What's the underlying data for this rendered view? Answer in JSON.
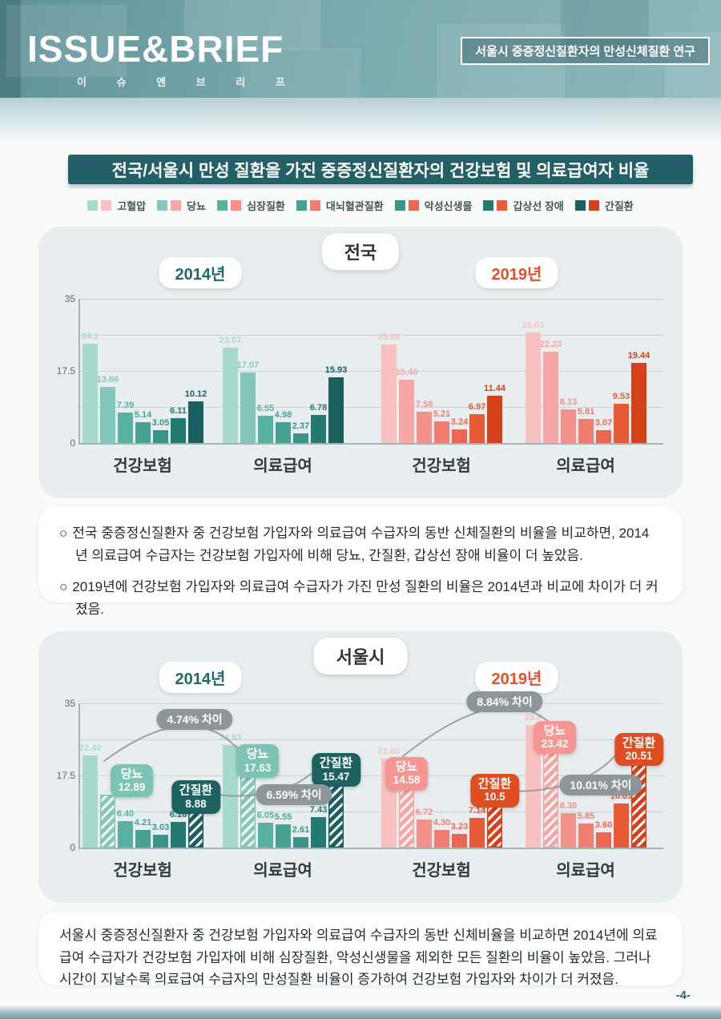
{
  "header": {
    "logo_title": "ISSUE&BRIEF",
    "logo_subtitle": "이 슈 앤 브 리 프",
    "badge": "서울시 중증정신질환자의 만성신체질환 연구"
  },
  "section_title": "전국/서울시 만성 질환을 가진 중증정신질환자의 건강보험 및 의료급여자 비율",
  "colors": {
    "teal_palette": [
      "#a8d9cd",
      "#83c7b8",
      "#58b1a1",
      "#47a294",
      "#3a9488",
      "#237a70",
      "#1a605f"
    ],
    "red_palette": [
      "#f8c1c1",
      "#f6a7a5",
      "#f3908a",
      "#f07d70",
      "#ec6752",
      "#e75b36",
      "#d5411a"
    ],
    "title_bar": "#235f66",
    "year_2014_text": "#1f6b64",
    "year_2019_text": "#e0522a",
    "diff_badge_bg": "#8f9699"
  },
  "legend": {
    "items": [
      {
        "label": "고혈압"
      },
      {
        "label": "당뇨"
      },
      {
        "label": "심장질환"
      },
      {
        "label": "대뇌혈관질환"
      },
      {
        "label": "악성신생물"
      },
      {
        "label": "갑상선 장애"
      },
      {
        "label": "간질환"
      }
    ]
  },
  "chart_data": [
    {
      "type": "bar",
      "title": "전국",
      "ylim": [
        0,
        35
      ],
      "grid_step": 8.75,
      "yticks": [
        {
          "label": "35",
          "value": 35
        },
        {
          "label": "17.5",
          "value": 17.5
        },
        {
          "label": "0",
          "value": 0
        }
      ],
      "series_labels": [
        "고혈압",
        "당뇨",
        "심장질환",
        "대뇌혈관질환",
        "악성신생물",
        "갑상선 장애",
        "간질환"
      ],
      "hatched_bar_indices": [],
      "year_sections": [
        {
          "label": "2014년",
          "palette": "teal_palette",
          "groups": [
            {
              "category": "건강보험",
              "values": [
                24.1,
                13.66,
                7.39,
                5.14,
                3.05,
                6.11,
                10.12
              ],
              "labels": [
                "24.1",
                "13.66",
                "7.39",
                "5.14",
                "3.05",
                "6.11",
                "10.12"
              ]
            },
            {
              "category": "의료급여",
              "values": [
                23.07,
                17.07,
                6.55,
                4.98,
                2.37,
                6.78,
                15.93
              ],
              "labels": [
                "23.07",
                "17.07",
                "6.55",
                "4.98",
                "2.37",
                "6.78",
                "15.93"
              ]
            }
          ]
        },
        {
          "label": "2019년",
          "palette": "red_palette",
          "groups": [
            {
              "category": "건강보험",
              "values": [
                23.88,
                15.4,
                7.58,
                5.21,
                3.24,
                6.97,
                11.44
              ],
              "labels": [
                "23.88",
                "15.40",
                "7.58",
                "5.21",
                "3.24",
                "6.97",
                "11.44"
              ]
            },
            {
              "category": "의료급여",
              "values": [
                26.83,
                22.23,
                8.13,
                5.81,
                3.07,
                9.53,
                19.44
              ],
              "labels": [
                "26.83",
                "22.23",
                "8.13",
                "5.81",
                "3.07",
                "9.53",
                "19.44"
              ]
            }
          ]
        }
      ],
      "callouts": [],
      "diff_annotations": []
    },
    {
      "type": "bar",
      "title": "서울시",
      "ylim": [
        0,
        35
      ],
      "grid_step": 8.75,
      "yticks": [
        {
          "label": "35",
          "value": 35
        },
        {
          "label": "17.5",
          "value": 17.5
        },
        {
          "label": "0",
          "value": 0
        }
      ],
      "series_labels": [
        "고혈압",
        "당뇨",
        "심장질환",
        "대뇌혈관질환",
        "악성신생물",
        "갑상선 장애",
        "간질환"
      ],
      "hatched_bar_indices": [
        1,
        6
      ],
      "year_sections": [
        {
          "label": "2014년",
          "palette": "teal_palette",
          "groups": [
            {
              "category": "건강보험",
              "values": [
                22.4,
                12.89,
                6.4,
                4.21,
                3.03,
                6.16,
                8.88
              ],
              "labels": [
                "22.40",
                "12.89",
                "6.40",
                "4.21",
                "3.03",
                "6.16",
                "8.88"
              ]
            },
            {
              "category": "의료급여",
              "values": [
                24.83,
                17.63,
                6.05,
                5.55,
                2.61,
                7.43,
                15.47
              ],
              "labels": [
                "24.83",
                "17.63",
                "6.05",
                "5.55",
                "2.61",
                "7.43",
                "15.47"
              ]
            }
          ]
        },
        {
          "label": "2019년",
          "palette": "red_palette",
          "groups": [
            {
              "category": "건강보험",
              "values": [
                21.65,
                14.58,
                6.72,
                4.3,
                3.23,
                7.14,
                10.5
              ],
              "labels": [
                "21.65",
                "14.58",
                "6.72",
                "4.30",
                "3.23",
                "7.14",
                "10.5"
              ]
            },
            {
              "category": "의료급여",
              "values": [
                29.8,
                23.42,
                8.3,
                5.85,
                3.6,
                10.61,
                20.51
              ],
              "labels": [
                "29.8",
                "23.42",
                "8.30",
                "5.85",
                "3.60",
                "10.61",
                "20.51"
              ]
            }
          ]
        }
      ],
      "callouts": [
        {
          "group": 0,
          "bar": 1,
          "title": "당뇨",
          "value": "12.89",
          "color": "#7cc3b3"
        },
        {
          "group": 0,
          "bar": 6,
          "title": "간질환",
          "value": "8.88",
          "color": "#1d6160"
        },
        {
          "group": 1,
          "bar": 1,
          "title": "당뇨",
          "value": "17.63",
          "color": "#7cc3b3"
        },
        {
          "group": 1,
          "bar": 6,
          "title": "간질환",
          "value": "15.47",
          "color": "#1d6160"
        },
        {
          "group": 2,
          "bar": 1,
          "title": "당뇨",
          "value": "14.58",
          "color": "#f59692"
        },
        {
          "group": 2,
          "bar": 6,
          "title": "간질환",
          "value": "10.5",
          "color": "#e04d20"
        },
        {
          "group": 3,
          "bar": 1,
          "title": "당뇨",
          "value": "23.42",
          "color": "#f59692"
        },
        {
          "group": 3,
          "bar": 6,
          "title": "간질환",
          "value": "20.51",
          "color": "#e04d20"
        }
      ],
      "diff_annotations": [
        {
          "text": "4.74% 차이"
        },
        {
          "text": "6.59% 차이"
        },
        {
          "text": "8.84% 차이"
        },
        {
          "text": "10.01% 차이"
        }
      ]
    }
  ],
  "summary1": {
    "marker": "○",
    "bullets": [
      "전국 중증정신질환자 중 건강보험 가입자와 의료급여 수급자의 동반 신체질환의 비율을 비교하면, 2014년 의료급여 수급자는 건강보험 가입자에 비해 당뇨, 간질환, 갑상선 장애 비율이 더 높았음.",
      "2019년에 건강보험 가입자와 의료급여 수급자가 가진 만성 질환의 비율은 2014년과 비교에 차이가 더 커졌음."
    ]
  },
  "summary2": {
    "text": "서울시 중증정신질환자 중 건강보험 가입자와 의료급여 수급자의 동반 신체비율을 비교하면 2014년에 의료급여 수급자가 건강보험 가입자에 비해 심장질환, 악성신생물을 제외한 모든 질환의 비율이 높았음. 그러나 시간이 지날수록 의료급여 수급자의 만성질환 비율이 증가하여 건강보험 가입자와 차이가 더 커졌음."
  },
  "footer": {
    "page_number": "-4-"
  }
}
